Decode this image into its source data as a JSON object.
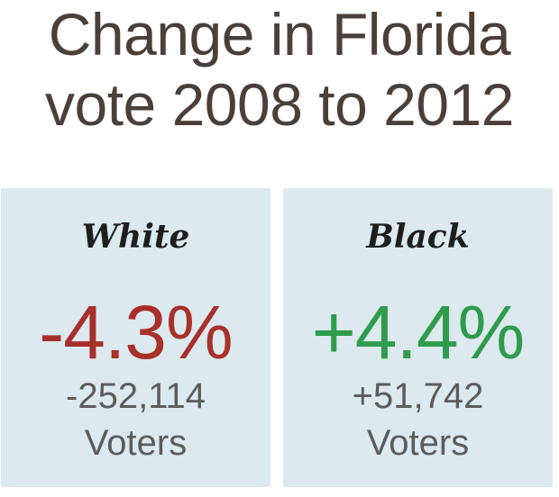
{
  "title": {
    "line1": "Change in Florida",
    "line2": "vote 2008 to 2012"
  },
  "panels": [
    {
      "group": "White",
      "percent_change": "-4.3%",
      "voter_change": "-252,114",
      "unit": "Voters",
      "color": "#a8302a"
    },
    {
      "group": "Black",
      "percent_change": "+4.4%",
      "voter_change": "+51,742",
      "unit": "Voters",
      "color": "#2e9c4c"
    }
  ],
  "colors": {
    "panel_background": "#dce9ee",
    "title_text": "#4a4039",
    "negative": "#a8302a",
    "positive": "#2e9c4c"
  }
}
